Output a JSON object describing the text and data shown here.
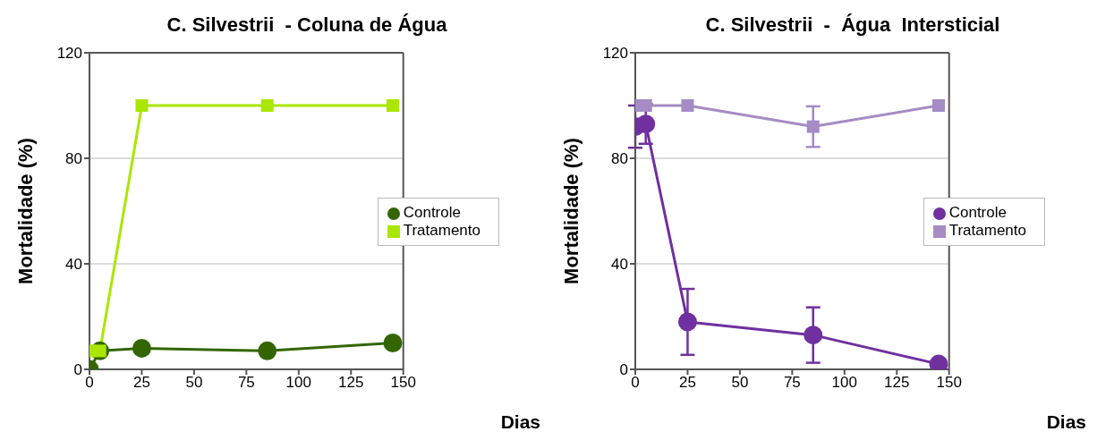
{
  "chart_data": [
    {
      "type": "line",
      "title": "C. Silvestrii  - Coluna de Água",
      "xlabel": "Dias",
      "ylabel": "Mortalidade (%)",
      "x": [
        0,
        5,
        25,
        85,
        145
      ],
      "series": [
        {
          "name": "Controle",
          "color": "#336600",
          "marker": "circle",
          "values": [
            0,
            7,
            8,
            7,
            10
          ]
        },
        {
          "name": "Tratamento",
          "color": "#aae600",
          "marker": "square",
          "values": [
            7,
            7,
            100,
            100,
            100
          ]
        }
      ],
      "xlim": [
        0,
        150
      ],
      "xticks": [
        0,
        25,
        50,
        75,
        100,
        125,
        150
      ],
      "ylim": [
        0,
        120
      ],
      "yticks": [
        0,
        40,
        80,
        120
      ],
      "grid": "y",
      "legend": "right"
    },
    {
      "type": "line",
      "title": "C. Silvestrii  -  Água  Intersticial",
      "xlabel": "Dias",
      "ylabel": "Mortalidade (%)",
      "x": [
        0,
        5,
        25,
        85,
        145
      ],
      "series": [
        {
          "name": "Controle",
          "color": "#7030a0",
          "marker": "circle",
          "values": [
            92,
            93,
            18,
            13,
            2
          ],
          "errors": [
            8,
            7.5,
            12.5,
            10.5,
            null
          ]
        },
        {
          "name": "Tratamento",
          "color": "#a58cc4",
          "marker": "square",
          "values": [
            100,
            100,
            100,
            92,
            100
          ],
          "errors": [
            null,
            null,
            null,
            7.7,
            null
          ]
        }
      ],
      "xlim": [
        0,
        150
      ],
      "xticks": [
        0,
        25,
        50,
        75,
        100,
        125,
        150
      ],
      "ylim": [
        0,
        120
      ],
      "yticks": [
        0,
        40,
        80,
        120
      ],
      "grid": "y",
      "legend": "right"
    }
  ]
}
